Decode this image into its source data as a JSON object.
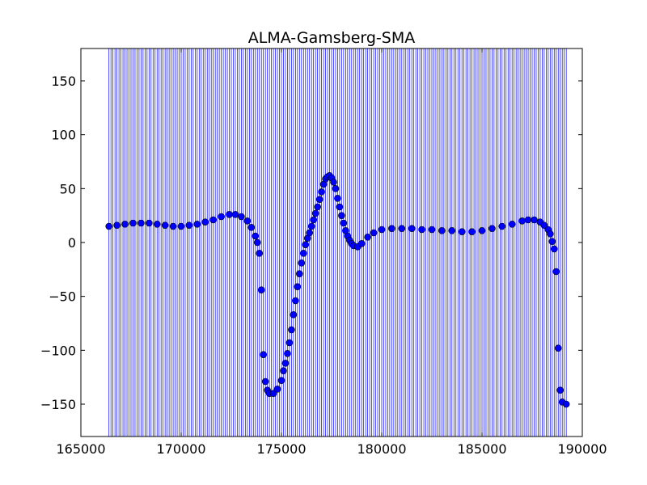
{
  "chart_data": {
    "type": "scatter",
    "title": "ALMA-Gamsberg-SMA",
    "xlabel": "",
    "ylabel": "",
    "xlim": [
      165000,
      190000
    ],
    "ylim": [
      -180,
      180
    ],
    "x_ticks": [
      165000,
      170000,
      175000,
      180000,
      185000,
      190000
    ],
    "x_tick_labels": [
      "165000",
      "170000",
      "175000",
      "180000",
      "185000",
      "190000"
    ],
    "y_ticks": [
      -150,
      -100,
      -50,
      0,
      50,
      100,
      150
    ],
    "y_tick_labels": [
      "−150",
      "−100",
      "−50",
      "0",
      "50",
      "100",
      "150"
    ],
    "grid": false,
    "legend": "none",
    "colors": {
      "points": "#0000ff",
      "point_edge": "#000000",
      "vlines": "#0000ff",
      "axes": "#000000",
      "background": "#ffffff"
    },
    "vlines": {
      "x_start": 166400,
      "x_end": 189200,
      "step": 100,
      "y_range": [
        -180,
        180
      ]
    },
    "series": [
      {
        "marker": "circle",
        "x": [
          166400,
          166800,
          167200,
          167600,
          168000,
          168400,
          168800,
          169200,
          169600,
          170000,
          170400,
          170800,
          171200,
          171600,
          172000,
          172400,
          172700,
          173000,
          173300,
          173500,
          173700,
          173800,
          173900,
          174000,
          174100,
          174200,
          174300,
          174400,
          174600,
          174800,
          175000,
          175100,
          175200,
          175300,
          175400,
          175500,
          175600,
          175700,
          175800,
          175900,
          176000,
          176100,
          176200,
          176300,
          176400,
          176500,
          176600,
          176700,
          176800,
          176900,
          177000,
          177100,
          177200,
          177300,
          177400,
          177500,
          177600,
          177700,
          177800,
          177900,
          178000,
          178100,
          178200,
          178300,
          178400,
          178500,
          178600,
          178800,
          179000,
          179300,
          179600,
          180000,
          180500,
          181000,
          181500,
          182000,
          182500,
          183000,
          183500,
          184000,
          184500,
          185000,
          185500,
          186000,
          186500,
          187000,
          187300,
          187600,
          187900,
          188100,
          188300,
          188400,
          188500,
          188600,
          188700,
          188800,
          188900,
          189000,
          189200
        ],
        "y": [
          15,
          16,
          17,
          18,
          18,
          18,
          17,
          16,
          15,
          15,
          16,
          17,
          19,
          21,
          24,
          26,
          26,
          24,
          20,
          14,
          6,
          0,
          -10,
          -44,
          -104,
          -129,
          -137,
          -140,
          -140,
          -136,
          -128,
          -119,
          -112,
          -103,
          -93,
          -81,
          -67,
          -54,
          -41,
          -29,
          -19,
          -10,
          -2,
          4,
          9,
          15,
          21,
          27,
          33,
          40,
          47,
          54,
          59,
          61,
          62,
          60,
          56,
          50,
          41,
          33,
          25,
          18,
          11,
          6,
          2,
          -1,
          -3,
          -4,
          -1,
          5,
          9,
          12,
          13,
          13,
          13,
          12,
          12,
          11,
          11,
          10,
          10,
          11,
          13,
          15,
          17,
          20,
          21,
          21,
          19,
          16,
          12,
          8,
          1,
          -6,
          -27,
          -98,
          -137,
          -148,
          -150
        ]
      }
    ]
  }
}
